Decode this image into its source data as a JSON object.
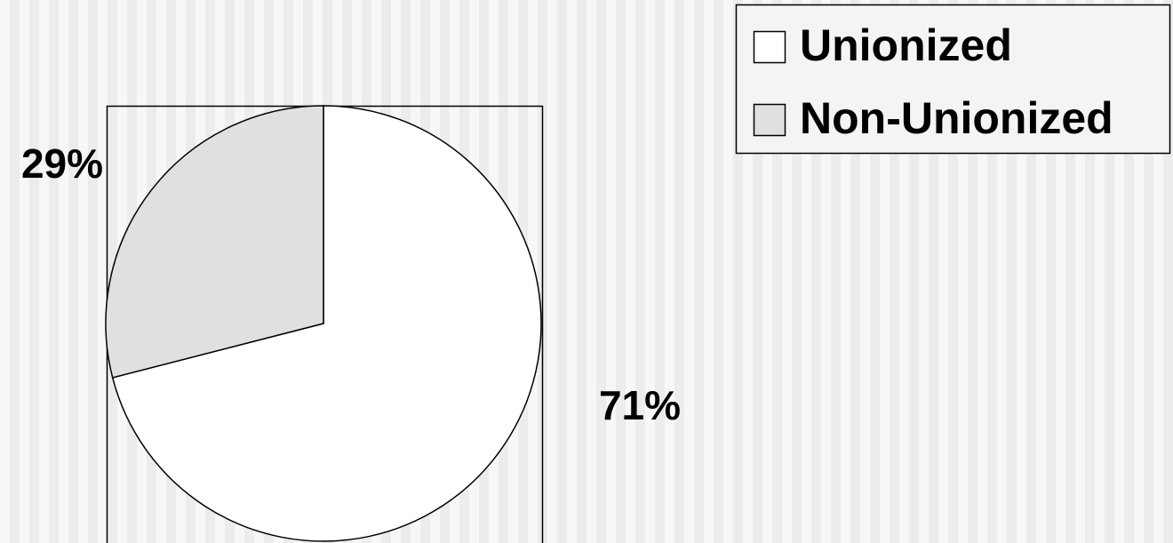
{
  "chart_data": {
    "type": "pie",
    "categories": [
      "Unionized",
      "Non-Unionized"
    ],
    "values": [
      71,
      29
    ],
    "value_labels": [
      "71%",
      "29%"
    ],
    "colors": [
      "#ffffff",
      "#e0e0e0"
    ],
    "legend": "top-right"
  }
}
